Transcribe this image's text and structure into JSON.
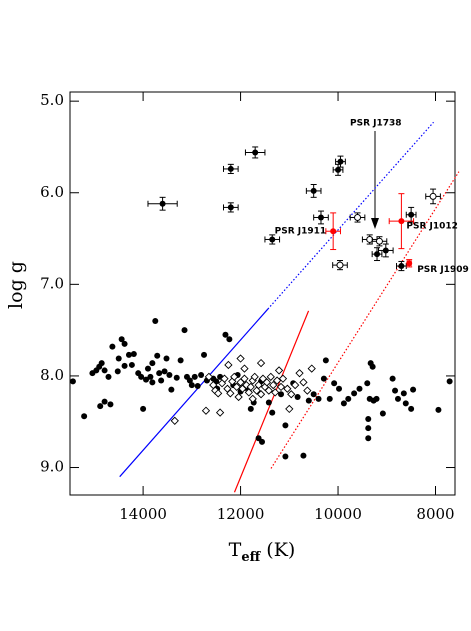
{
  "chart_data": {
    "type": "scatter",
    "xlabel": {
      "main": "T",
      "sub": "eff",
      "unit": "(K)"
    },
    "ylabel": "log g",
    "xlim": [
      15500,
      7600
    ],
    "ylim": [
      9.3,
      4.9
    ],
    "xticks": [
      14000,
      12000,
      10000,
      8000
    ],
    "yticks": [
      {
        "value": 5,
        "label": "5.0"
      },
      {
        "value": 6,
        "label": "6.0"
      },
      {
        "value": 7,
        "label": "7.0"
      },
      {
        "value": 8,
        "label": "8.0"
      },
      {
        "value": 9,
        "label": "9.0"
      }
    ],
    "annotations": [
      "PSR J1738"
    ],
    "lines": [
      {
        "color": "#0000ff",
        "style": "solid",
        "x": [
          14480,
          11440
        ],
        "y": [
          9.1,
          7.27
        ]
      },
      {
        "color": "#0000ff",
        "style": "dotted",
        "x": [
          11440,
          8040
        ],
        "y": [
          7.27,
          5.23
        ]
      },
      {
        "color": "#ff0000",
        "style": "solid",
        "x": [
          12125,
          10605
        ],
        "y": [
          9.27,
          7.29
        ]
      },
      {
        "color": "#ff0000",
        "style": "dotted",
        "x": [
          11375,
          7520
        ],
        "y": [
          9.01,
          5.77
        ]
      }
    ],
    "series": [
      {
        "marker": "filled-circle",
        "color": "#000000",
        "x": [
          15440,
          15210,
          15040,
          14960,
          14900,
          14850,
          14790,
          14710,
          14880,
          14790,
          14670,
          14630,
          14520,
          14500,
          14440,
          14380,
          14290,
          14380,
          14230,
          14190,
          14100,
          14040,
          14000,
          13940,
          13900,
          13850,
          13810,
          13810,
          13750,
          13710,
          13670,
          13630,
          13560,
          13520,
          13460,
          13420,
          13310,
          13230,
          13150,
          13100,
          13040,
          13000,
          12940,
          12880,
          12810,
          12750,
          12690,
          12560,
          12480,
          12420,
          12310,
          12230,
          12150,
          12060,
          12000,
          11900,
          11790,
          11730,
          11630,
          11080,
          10710,
          11580,
          11420,
          11350,
          11170,
          11080,
          10920,
          10830,
          10600,
          10500,
          10400,
          10290,
          10250,
          10170,
          10080,
          9980,
          9880,
          9790,
          9670,
          9560,
          9330,
          9290,
          9400,
          9350,
          9380,
          9380,
          9380,
          9270,
          9210,
          9080,
          8880,
          8830,
          8770,
          8650,
          8610,
          8500,
          8460,
          7940,
          7710,
          12500,
          11560
        ],
        "y": [
          8.06,
          8.44,
          7.97,
          7.94,
          7.9,
          7.86,
          7.94,
          8.01,
          8.33,
          8.28,
          8.31,
          7.68,
          7.95,
          7.81,
          7.6,
          7.65,
          7.77,
          7.89,
          7.88,
          7.76,
          7.97,
          8.01,
          8.36,
          8.04,
          7.92,
          8.01,
          8.07,
          7.86,
          7.4,
          7.78,
          7.97,
          8.05,
          7.95,
          7.81,
          7.99,
          8.15,
          8.02,
          7.83,
          7.5,
          8.01,
          8.05,
          8.1,
          8.01,
          8.11,
          7.99,
          7.77,
          8.05,
          8.03,
          8.14,
          8.01,
          7.55,
          7.6,
          8.1,
          7.99,
          8.17,
          8.13,
          8.36,
          8.29,
          8.68,
          8.88,
          8.87,
          8.06,
          8.29,
          8.4,
          8.2,
          8.54,
          8.08,
          8.23,
          8.27,
          8.2,
          8.25,
          8.03,
          7.83,
          8.25,
          8.08,
          8.14,
          8.3,
          8.25,
          8.19,
          8.14,
          7.86,
          7.9,
          8.08,
          8.25,
          8.47,
          8.57,
          8.68,
          8.27,
          8.25,
          8.41,
          8.03,
          8.16,
          8.25,
          8.19,
          8.3,
          8.36,
          8.15,
          8.37,
          8.06,
          8.06,
          8.72
        ]
      },
      {
        "marker": "open-diamond",
        "color": "#000000",
        "x": [
          13350,
          12650,
          12560,
          12520,
          12460,
          12380,
          12330,
          12270,
          12210,
          12170,
          12130,
          12080,
          12040,
          12000,
          11960,
          11920,
          11880,
          11830,
          11790,
          11750,
          11710,
          11670,
          11630,
          11580,
          11540,
          11500,
          11460,
          11420,
          11380,
          11330,
          11290,
          11250,
          11210,
          11170,
          11130,
          11040,
          10960,
          10880,
          10790,
          10710,
          10630,
          10540,
          12710,
          12420,
          11920,
          11000,
          11750,
          12000,
          12250,
          11580
        ],
        "y": [
          8.49,
          8.01,
          8.1,
          8.16,
          8.19,
          8.08,
          8.03,
          8.14,
          8.19,
          8.06,
          8.01,
          8.12,
          8.23,
          8.07,
          8.14,
          8.03,
          8.1,
          8.18,
          8.12,
          8.05,
          8.01,
          8.16,
          8.1,
          8.2,
          8.03,
          8.12,
          8.07,
          8.16,
          8.01,
          8.1,
          8.18,
          8.05,
          7.94,
          8.12,
          8.03,
          8.14,
          8.2,
          8.1,
          7.97,
          8.07,
          8.16,
          7.92,
          8.38,
          8.4,
          7.92,
          8.36,
          8.25,
          7.81,
          7.88,
          7.86
        ]
      },
      {
        "marker": "filled-circle-err",
        "color": "#000000",
        "x": [
          13600,
          12200,
          11700,
          12200,
          11350,
          10500,
          10350,
          9950,
          10000,
          9200,
          9020,
          8700,
          8500
        ],
        "y": [
          6.12,
          5.74,
          5.56,
          6.16,
          6.51,
          5.98,
          6.27,
          5.66,
          5.75,
          6.67,
          6.63,
          6.8,
          6.24
        ],
        "xerr": [
          300,
          150,
          200,
          150,
          150,
          150,
          150,
          100,
          100,
          100,
          150,
          100,
          100
        ],
        "yerr": [
          0.07,
          0.05,
          0.06,
          0.05,
          0.05,
          0.07,
          0.07,
          0.06,
          0.06,
          0.07,
          0.07,
          0.05,
          0.08
        ]
      },
      {
        "marker": "open-circle-err",
        "color": "#000000",
        "x": [
          9600,
          9350,
          9150,
          9960,
          8050
        ],
        "y": [
          6.27,
          6.51,
          6.53,
          6.79,
          6.04
        ],
        "xerr": [
          150,
          150,
          150,
          150,
          150
        ],
        "yerr": [
          0.05,
          0.05,
          0.05,
          0.05,
          0.08
        ]
      },
      {
        "marker": "filled-circle-err",
        "color": "#ff0000",
        "labels": [
          "PSR J1911",
          "PSR J1012",
          "PSR J1909"
        ],
        "x": [
          10100,
          8700,
          8540
        ],
        "y": [
          6.42,
          6.31,
          6.77
        ],
        "xerr": [
          150,
          250,
          40
        ],
        "yerr": [
          0.2,
          0.3,
          0.04
        ]
      }
    ]
  }
}
